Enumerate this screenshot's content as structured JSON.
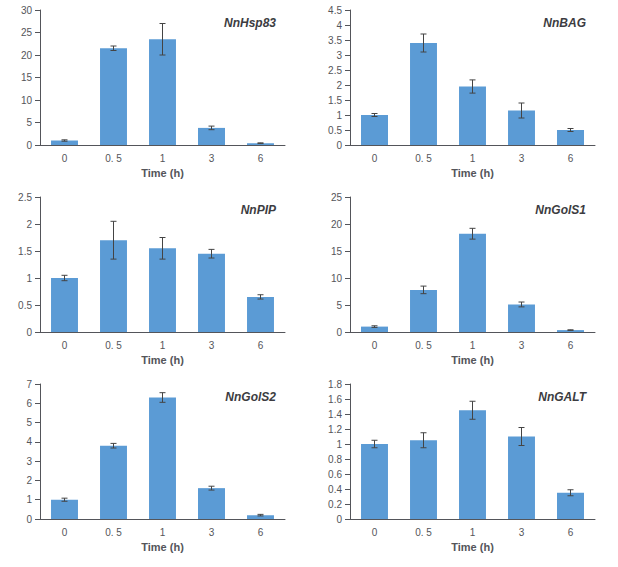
{
  "chart_data": [
    {
      "type": "bar",
      "title": "NnHsp83",
      "xlabel": "Time (h)",
      "categories": [
        "0",
        "0. 5",
        "1",
        "3",
        "6"
      ],
      "values": [
        1.0,
        21.5,
        23.5,
        3.8,
        0.4
      ],
      "errors": [
        0.15,
        0.5,
        3.5,
        0.4,
        0.08
      ],
      "color": "#5B9BD5",
      "ylim": [
        0,
        30
      ],
      "yticks": [
        0,
        5,
        10,
        15,
        20,
        25,
        30
      ],
      "grid": false
    },
    {
      "type": "bar",
      "title": "NnBAG",
      "xlabel": "Time (h)",
      "categories": [
        "0",
        "0. 5",
        "1",
        "3",
        "6"
      ],
      "values": [
        1.0,
        3.4,
        1.95,
        1.15,
        0.5
      ],
      "errors": [
        0.05,
        0.3,
        0.22,
        0.25,
        0.05
      ],
      "color": "#5B9BD5",
      "ylim": [
        0,
        4.5
      ],
      "yticks": [
        0,
        0.5,
        1,
        1.5,
        2,
        2.5,
        3,
        3.5,
        4,
        4.5
      ],
      "grid": false
    },
    {
      "type": "bar",
      "title": "NnPIP",
      "xlabel": "Time (h)",
      "categories": [
        "0",
        "0. 5",
        "1",
        "3",
        "6"
      ],
      "values": [
        1.0,
        1.7,
        1.55,
        1.45,
        0.65
      ],
      "errors": [
        0.05,
        0.35,
        0.2,
        0.08,
        0.04
      ],
      "color": "#5B9BD5",
      "ylim": [
        0,
        2.5
      ],
      "yticks": [
        0,
        0.5,
        1,
        1.5,
        2,
        2.5
      ],
      "grid": false
    },
    {
      "type": "bar",
      "title": "NnGolS1",
      "xlabel": "Time (h)",
      "categories": [
        "0",
        "0. 5",
        "1",
        "3",
        "6"
      ],
      "values": [
        1.0,
        7.8,
        18.2,
        5.1,
        0.35
      ],
      "errors": [
        0.15,
        0.7,
        1.0,
        0.45,
        0.06
      ],
      "color": "#5B9BD5",
      "ylim": [
        0,
        25
      ],
      "yticks": [
        0,
        5,
        10,
        15,
        20,
        25
      ],
      "grid": false
    },
    {
      "type": "bar",
      "title": "NnGolS2",
      "xlabel": "Time (h)",
      "categories": [
        "0",
        "0. 5",
        "1",
        "3",
        "6"
      ],
      "values": [
        1.0,
        3.8,
        6.3,
        1.6,
        0.2
      ],
      "errors": [
        0.08,
        0.12,
        0.25,
        0.1,
        0.04
      ],
      "color": "#5B9BD5",
      "ylim": [
        0,
        7
      ],
      "yticks": [
        0,
        1,
        2,
        3,
        4,
        5,
        6,
        7
      ],
      "grid": false
    },
    {
      "type": "bar",
      "title": "NnGALT",
      "xlabel": "Time (h)",
      "categories": [
        "0",
        "0. 5",
        "1",
        "3",
        "6"
      ],
      "values": [
        1.0,
        1.05,
        1.45,
        1.1,
        0.35
      ],
      "errors": [
        0.05,
        0.1,
        0.12,
        0.12,
        0.04
      ],
      "color": "#5B9BD5",
      "ylim": [
        0,
        1.8
      ],
      "yticks": [
        0,
        0.2,
        0.4,
        0.6,
        0.8,
        1,
        1.2,
        1.4,
        1.6,
        1.8
      ],
      "grid": false
    }
  ]
}
